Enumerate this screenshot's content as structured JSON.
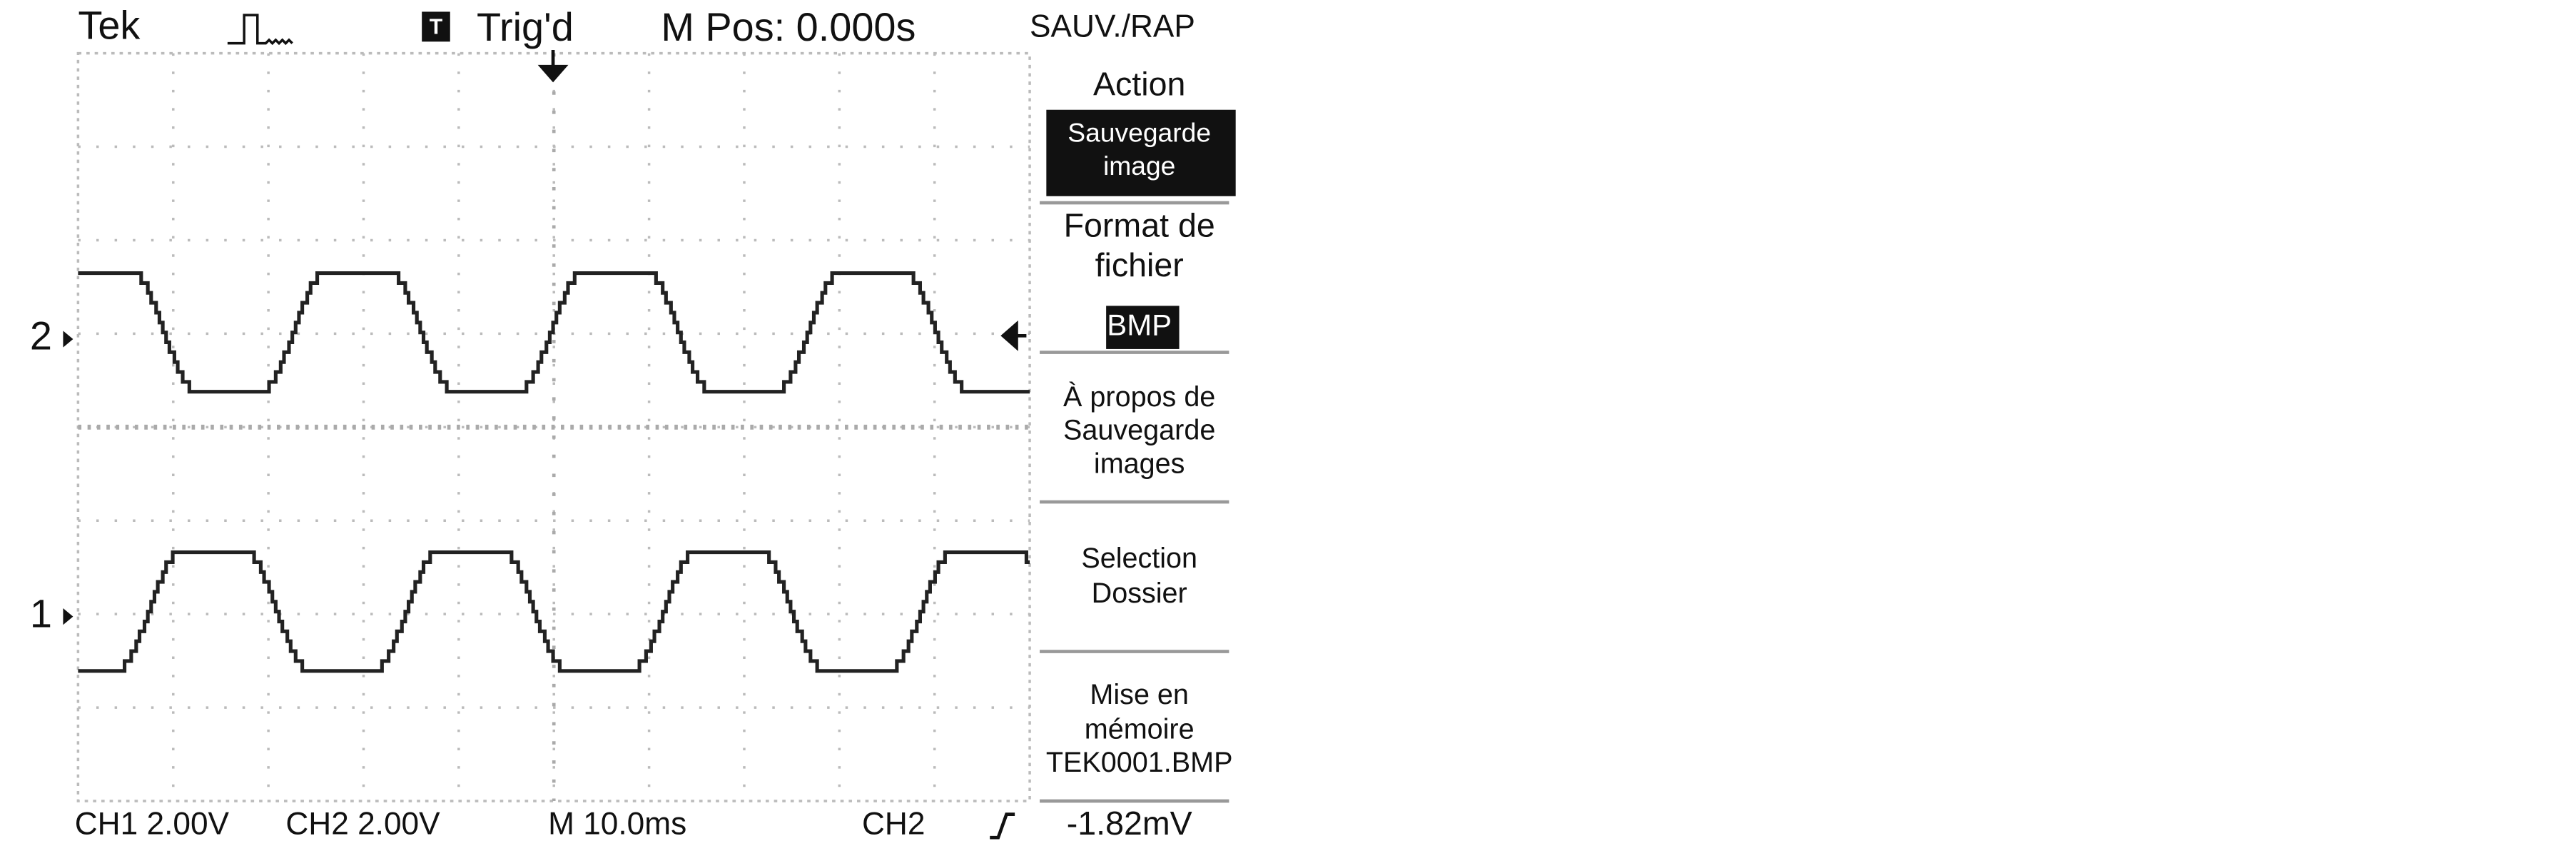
{
  "header": {
    "brand": "Tek",
    "trigger_status": "Trig'd",
    "trigger_icon": "T",
    "position": "M Pos: 0.000s"
  },
  "menu": {
    "title": "SAUV./RAP",
    "items": [
      {
        "lines": [
          "Action"
        ]
      },
      {
        "lines": [
          "Sauvegarde",
          "image"
        ],
        "highlighted": true
      },
      {
        "lines": [
          "Format de",
          "fichier"
        ]
      },
      {
        "lines": [
          "BMP"
        ],
        "highlighted": true
      },
      {
        "lines": [
          "À propos de",
          "Sauvegarde",
          "images"
        ]
      },
      {
        "lines": [
          "Selection",
          "Dossier"
        ]
      },
      {
        "lines": [
          "Mise en",
          "mémoire",
          "TEK0001.BMP"
        ]
      }
    ],
    "trigger_level": "-1.82mV"
  },
  "channels": {
    "markers": [
      "2",
      "1"
    ]
  },
  "footer": {
    "ch1": "CH1 2.00V",
    "ch2": "CH2 2.00V",
    "timebase": "M 10.0ms",
    "trigger_source": "CH2"
  }
}
